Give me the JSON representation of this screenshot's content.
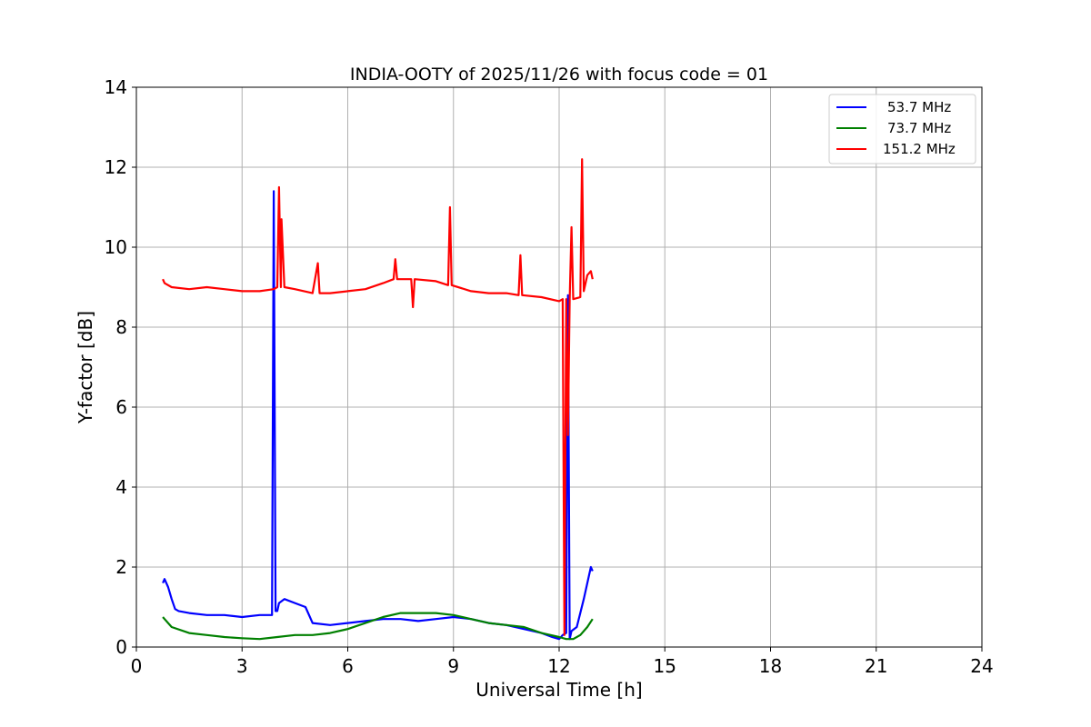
{
  "chart_data": {
    "type": "line",
    "title": "INDIA-OOTY of 2025/11/26 with focus code = 01",
    "xlabel": "Universal Time [h]",
    "ylabel": "Y-factor [dB]",
    "xlim": [
      0,
      24
    ],
    "ylim": [
      0,
      14
    ],
    "xticks": [
      0,
      3,
      6,
      9,
      12,
      15,
      18,
      21,
      24
    ],
    "yticks": [
      0,
      2,
      4,
      6,
      8,
      10,
      12,
      14
    ],
    "grid": true,
    "legend_position": "top-right",
    "series": [
      {
        "name": "53.7 MHz",
        "color": "#0000ff",
        "x": [
          0.75,
          0.8,
          0.9,
          1.0,
          1.1,
          1.2,
          1.5,
          2.0,
          2.5,
          3.0,
          3.5,
          3.85,
          3.9,
          3.95,
          4.0,
          4.05,
          4.2,
          4.5,
          4.8,
          5.0,
          5.5,
          6.0,
          6.5,
          7.0,
          7.5,
          8.0,
          8.5,
          9.0,
          9.5,
          10.0,
          10.5,
          11.0,
          11.5,
          11.8,
          12.0,
          12.1,
          12.2,
          12.25,
          12.3,
          12.35,
          12.5,
          12.7,
          12.8,
          12.9,
          12.95
        ],
        "y": [
          1.6,
          1.7,
          1.5,
          1.2,
          0.95,
          0.9,
          0.85,
          0.8,
          0.8,
          0.75,
          0.8,
          0.8,
          11.4,
          0.9,
          0.9,
          1.1,
          1.2,
          1.1,
          1.0,
          0.6,
          0.55,
          0.6,
          0.65,
          0.7,
          0.7,
          0.65,
          0.7,
          0.75,
          0.7,
          0.6,
          0.55,
          0.45,
          0.35,
          0.25,
          0.2,
          0.3,
          0.35,
          8.8,
          0.2,
          0.4,
          0.5,
          1.2,
          1.6,
          2.0,
          1.9
        ]
      },
      {
        "name": "73.7 MHz",
        "color": "#008000",
        "x": [
          0.75,
          0.8,
          1.0,
          1.5,
          2.0,
          2.5,
          3.0,
          3.5,
          4.0,
          4.5,
          5.0,
          5.5,
          6.0,
          6.5,
          7.0,
          7.5,
          8.0,
          8.5,
          9.0,
          9.5,
          10.0,
          10.5,
          11.0,
          11.5,
          12.0,
          12.2,
          12.4,
          12.6,
          12.8,
          12.95
        ],
        "y": [
          0.75,
          0.7,
          0.5,
          0.35,
          0.3,
          0.25,
          0.22,
          0.2,
          0.25,
          0.3,
          0.3,
          0.35,
          0.45,
          0.6,
          0.75,
          0.85,
          0.85,
          0.85,
          0.8,
          0.7,
          0.6,
          0.55,
          0.5,
          0.35,
          0.25,
          0.2,
          0.2,
          0.3,
          0.5,
          0.7
        ]
      },
      {
        "name": "151.2 MHz",
        "color": "#ff0000",
        "x": [
          0.75,
          0.8,
          1.0,
          1.5,
          2.0,
          2.5,
          3.0,
          3.5,
          3.9,
          4.0,
          4.05,
          4.1,
          4.12,
          4.2,
          4.5,
          5.0,
          5.15,
          5.2,
          5.5,
          6.0,
          6.5,
          7.0,
          7.3,
          7.35,
          7.4,
          7.8,
          7.85,
          7.9,
          8.5,
          8.85,
          8.9,
          8.95,
          9.5,
          10.0,
          10.5,
          10.85,
          10.9,
          10.95,
          11.5,
          12.0,
          12.1,
          12.15,
          12.2,
          12.25,
          12.3,
          12.35,
          12.4,
          12.6,
          12.65,
          12.7,
          12.8,
          12.9,
          12.95
        ],
        "y": [
          9.2,
          9.1,
          9.0,
          8.95,
          9.0,
          8.95,
          8.9,
          8.9,
          8.95,
          9.0,
          11.5,
          9.0,
          10.7,
          9.0,
          8.95,
          8.85,
          9.6,
          8.85,
          8.85,
          8.9,
          8.95,
          9.1,
          9.2,
          9.7,
          9.2,
          9.2,
          8.5,
          9.2,
          9.15,
          9.05,
          11.0,
          9.05,
          8.9,
          8.85,
          8.85,
          8.8,
          9.8,
          8.8,
          8.75,
          8.65,
          8.7,
          0.3,
          8.7,
          5.3,
          8.7,
          10.5,
          8.7,
          8.75,
          12.2,
          8.9,
          9.3,
          9.4,
          9.2
        ]
      }
    ]
  }
}
